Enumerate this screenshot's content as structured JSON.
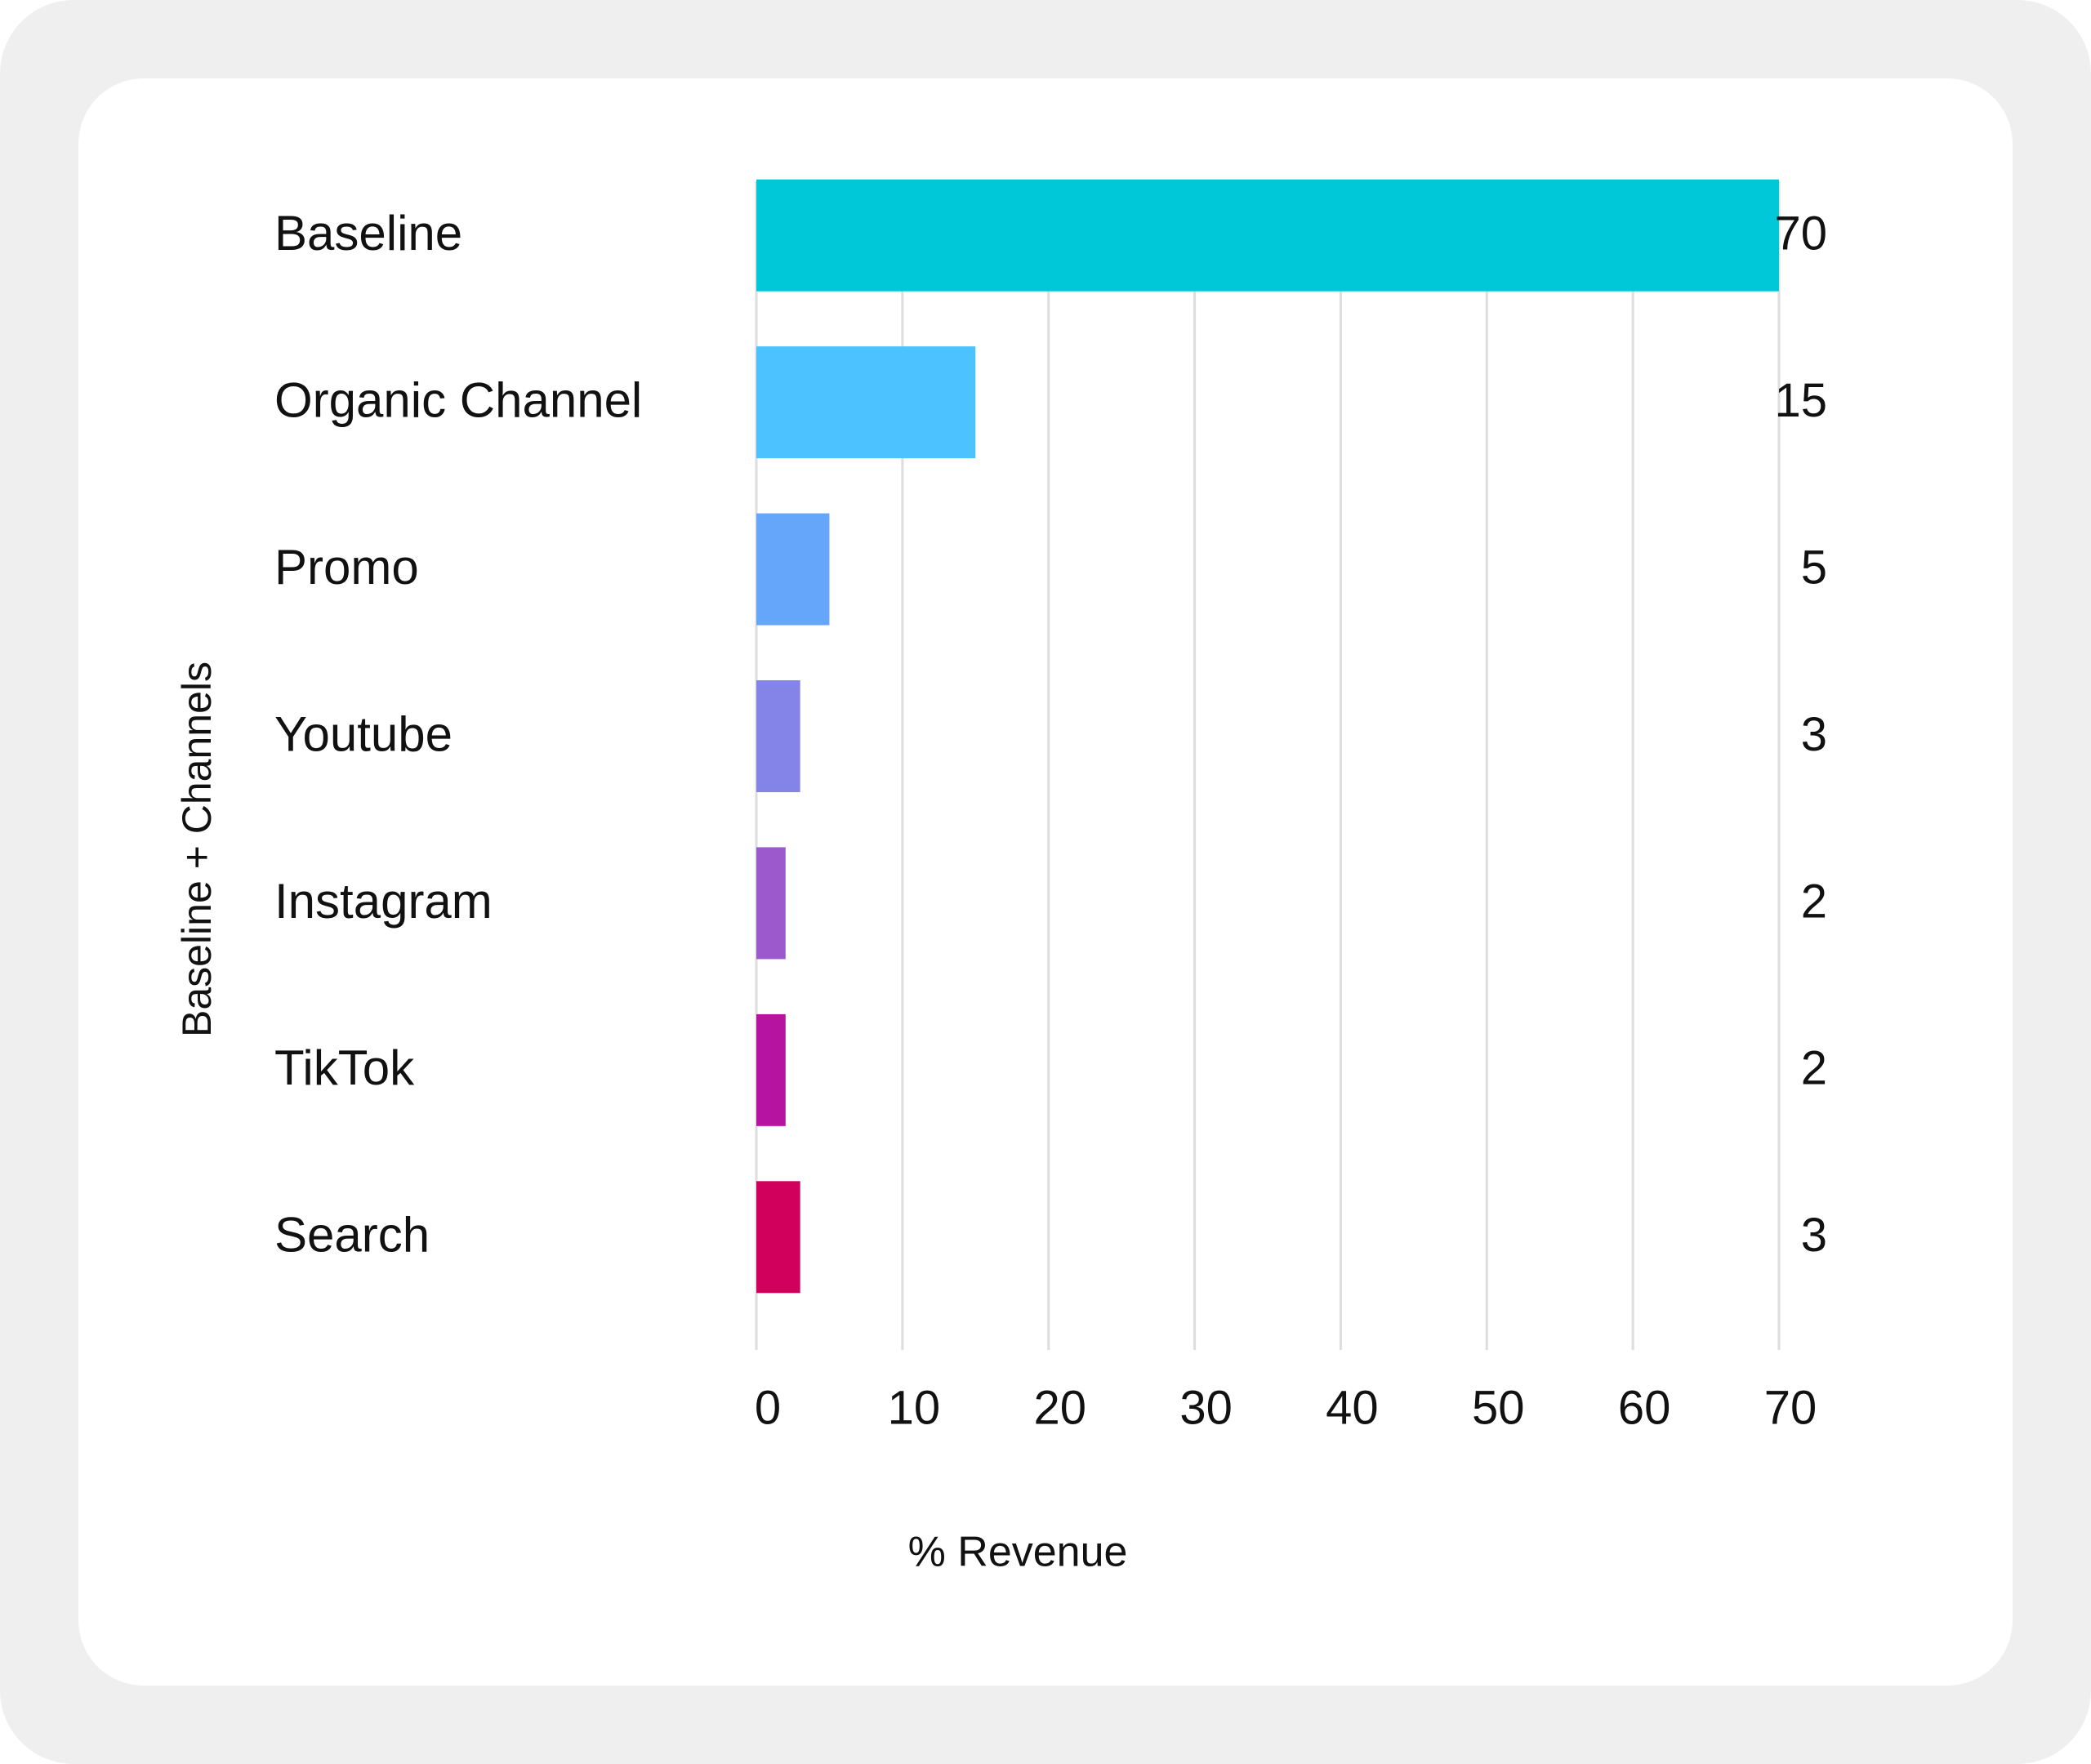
{
  "chart_data": {
    "type": "bar",
    "orientation": "horizontal",
    "xlabel": "% Revenue",
    "ylabel": "Baseline + Channels",
    "categories": [
      "Baseline",
      "Organic Channel",
      "Promo",
      "Youtube",
      "Instagram",
      "TikTok",
      "Search"
    ],
    "values": [
      70,
      15,
      5,
      3,
      2,
      2,
      3
    ],
    "colors": [
      "#00c8d9",
      "#4cc3ff",
      "#66a6fa",
      "#8383e8",
      "#9b59cc",
      "#b713a1",
      "#d0005c"
    ],
    "xlim": [
      0,
      70
    ],
    "xticks": [
      0,
      10,
      20,
      30,
      40,
      50,
      60,
      70
    ],
    "grid": true
  }
}
